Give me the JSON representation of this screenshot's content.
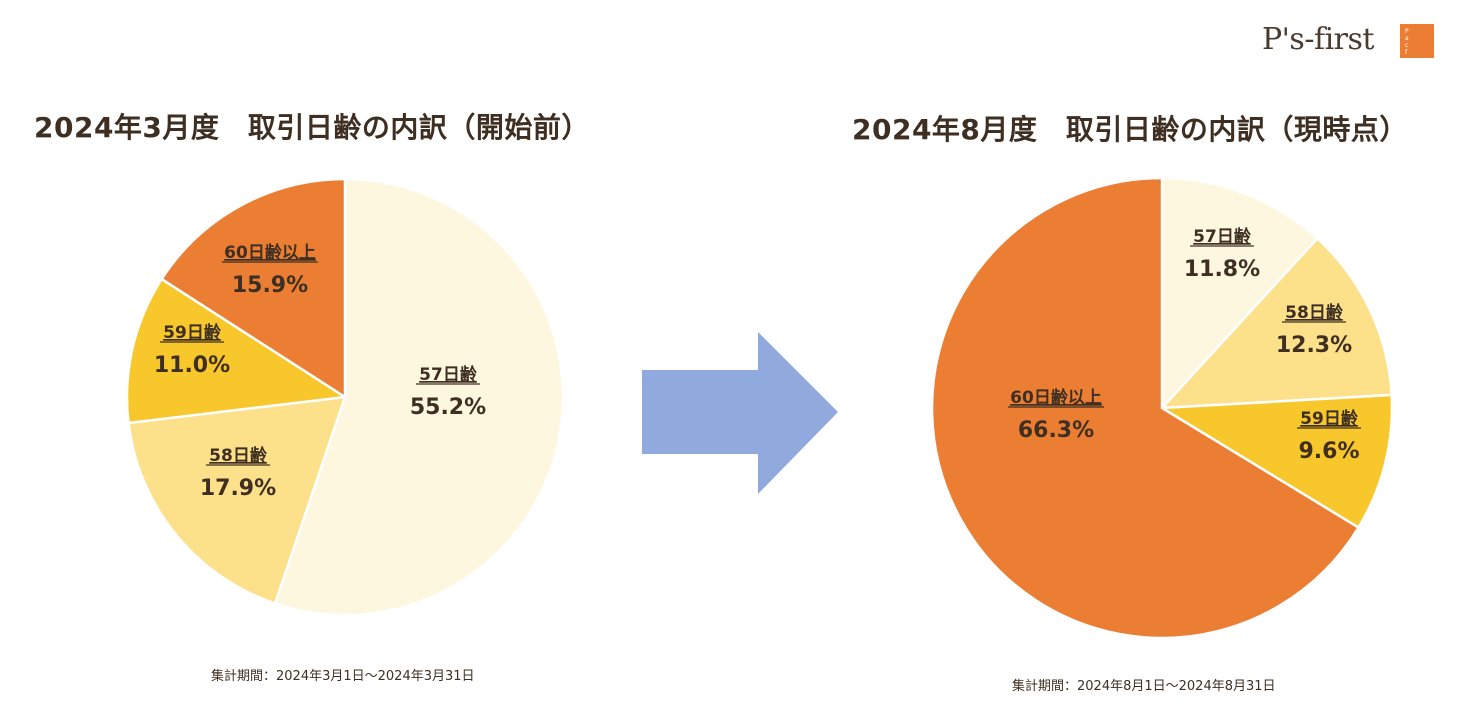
{
  "logo": {
    "text": "P's-first",
    "badge_text": "Pets always come first"
  },
  "colors": {
    "cat_57": "#fef7e0",
    "cat_58": "#fce08a",
    "cat_59": "#f7c72b",
    "cat_60": "#ec7e33",
    "arrow": "#90aadd",
    "text": "#3e2f22"
  },
  "chart_data": [
    {
      "type": "pie",
      "title": "2024年3月度　取引日齢の内訳（開始前）",
      "period": "集計期間：2024年3月1日〜2024年3月31日",
      "slices": [
        {
          "label": "57日齢",
          "value": 55.2,
          "display": "55.2%"
        },
        {
          "label": "58日齢",
          "value": 17.9,
          "display": "17.9%"
        },
        {
          "label": "59日齢",
          "value": 11.0,
          "display": "11.0%"
        },
        {
          "label": "60日齢以上",
          "value": 15.9,
          "display": "15.9%"
        }
      ]
    },
    {
      "type": "pie",
      "title": "2024年8月度　取引日齢の内訳（現時点）",
      "period": "集計期間：2024年8月1日〜2024年8月31日",
      "slices": [
        {
          "label": "57日齢",
          "value": 11.8,
          "display": "11.8%"
        },
        {
          "label": "58日齢",
          "value": 12.3,
          "display": "12.3%"
        },
        {
          "label": "59日齢",
          "value": 9.6,
          "display": "9.6%"
        },
        {
          "label": "60日齢以上",
          "value": 66.3,
          "display": "66.3%"
        }
      ]
    }
  ]
}
